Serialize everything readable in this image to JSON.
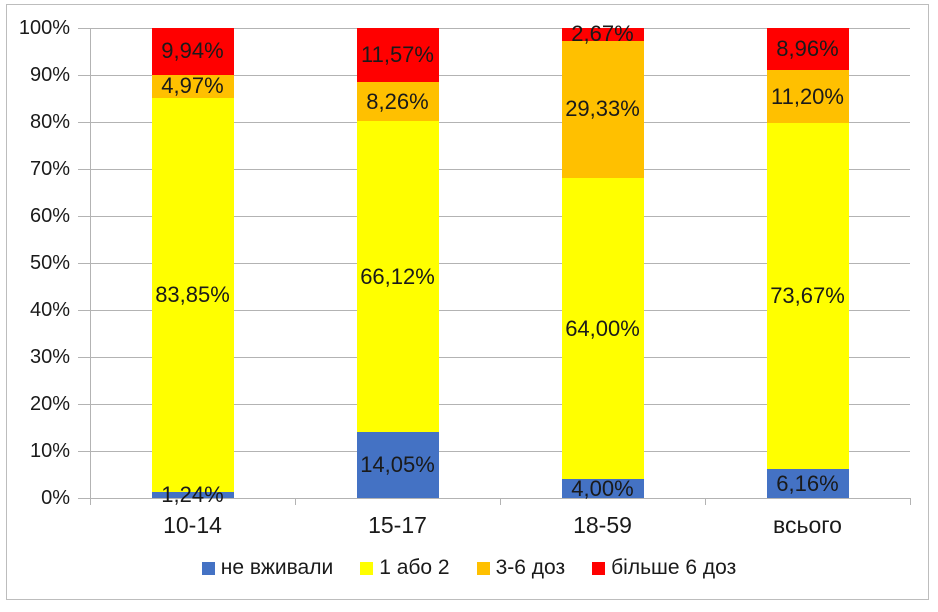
{
  "chart_data": {
    "type": "bar",
    "variant": "stacked-100-percent",
    "title": "",
    "xlabel": "",
    "ylabel": "",
    "grid": true,
    "gridline_color": "#b3b3b3",
    "text_color": "#1a1a1a",
    "categories": [
      "10-14",
      "15-17",
      "18-59",
      "всього"
    ],
    "series": [
      {
        "name": "не вживали",
        "color": "#4472C4",
        "values": [
          1.24,
          14.05,
          4.0,
          6.16
        ],
        "labels": [
          "1,24%",
          "14,05%",
          "4,00%",
          "6,16%"
        ]
      },
      {
        "name": "1 або 2",
        "color": "#FFFF00",
        "values": [
          83.85,
          66.12,
          64.0,
          73.67
        ],
        "labels": [
          "83,85%",
          "66,12%",
          "64,00%",
          "73,67%"
        ]
      },
      {
        "name": "3-6 доз",
        "color": "#FFC000",
        "values": [
          4.97,
          8.26,
          29.33,
          11.2
        ],
        "labels": [
          "4,97%",
          "8,26%",
          "29,33%",
          "11,20%"
        ]
      },
      {
        "name": "більше 6 доз",
        "color": "#FF0000",
        "values": [
          9.94,
          11.57,
          2.67,
          8.96
        ],
        "labels": [
          "9,94%",
          "11,57%",
          "2,67%",
          "8,96%"
        ]
      }
    ],
    "y_axis": {
      "min": 0,
      "max": 100,
      "step": 10,
      "tick_labels": [
        "0%",
        "10%",
        "20%",
        "30%",
        "40%",
        "50%",
        "60%",
        "70%",
        "80%",
        "90%",
        "100%"
      ]
    },
    "legend": {
      "position": "bottom",
      "entries": [
        "не вживали",
        "1 або 2",
        "3-6 доз",
        "більше 6 доз"
      ]
    }
  }
}
